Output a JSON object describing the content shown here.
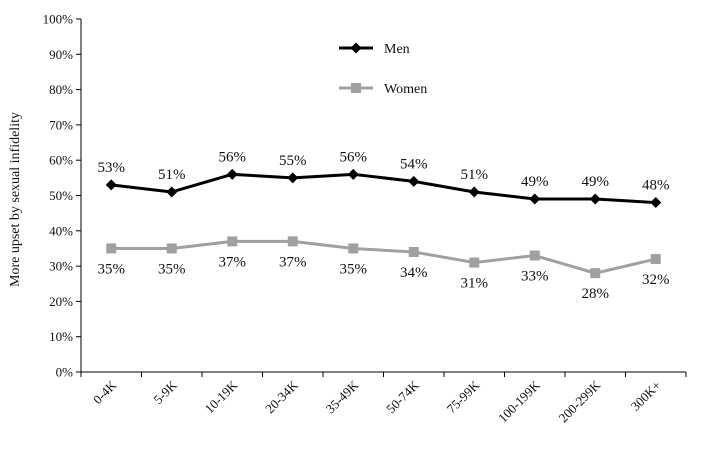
{
  "chart_data": {
    "type": "line",
    "title": "",
    "xlabel": "",
    "ylabel": "More upset by sexual infidelity",
    "categories": [
      "0-4K",
      "5-9K",
      "10-19K",
      "20-34K",
      "35-49K",
      "50-74K",
      "75-99K",
      "100-199K",
      "200-299K",
      "300K+"
    ],
    "ylim": [
      0,
      100
    ],
    "yticks": [
      "0%",
      "10%",
      "20%",
      "30%",
      "40%",
      "50%",
      "60%",
      "70%",
      "80%",
      "90%",
      "100%"
    ],
    "grid": false,
    "legend_position": "top-center",
    "series": [
      {
        "name": "Men",
        "values": [
          53,
          51,
          56,
          55,
          56,
          54,
          51,
          49,
          49,
          48
        ],
        "labels": [
          "53%",
          "51%",
          "56%",
          "55%",
          "56%",
          "54%",
          "51%",
          "49%",
          "49%",
          "48%"
        ],
        "color": "#000000",
        "marker": "diamond"
      },
      {
        "name": "Women",
        "values": [
          35,
          35,
          37,
          37,
          35,
          34,
          31,
          33,
          28,
          32
        ],
        "labels": [
          "35%",
          "35%",
          "37%",
          "37%",
          "35%",
          "34%",
          "31%",
          "33%",
          "28%",
          "32%"
        ],
        "color": "#a0a0a0",
        "marker": "square"
      }
    ]
  }
}
